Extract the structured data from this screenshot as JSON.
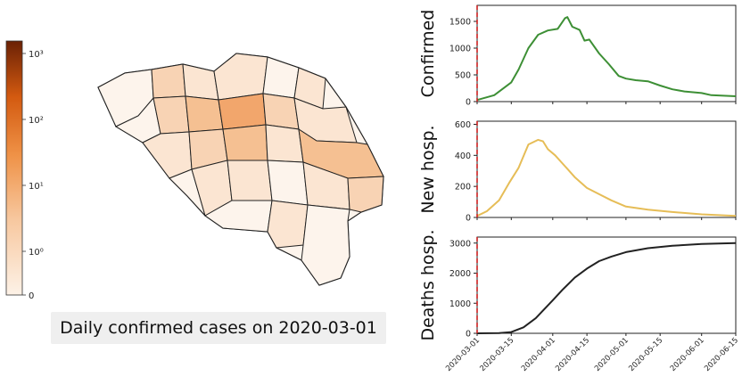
{
  "colorbar": {
    "ticks": [
      "10³",
      "10²",
      "10¹",
      "10⁰",
      "0"
    ],
    "colors": [
      "#f6eadc",
      "#f3c49a",
      "#e9823d",
      "#c24a0c",
      "#6a2105"
    ]
  },
  "map": {
    "caption": "Daily confirmed cases on 2020-03-01",
    "palette": [
      "#fdf4ec",
      "#fbe5d2",
      "#f8d3b4",
      "#f5c092",
      "#f2a66c"
    ]
  },
  "chart_data": [
    {
      "type": "line",
      "ylabel": "Confirmed",
      "color": "#3d8f35",
      "ylim": [
        0,
        1800
      ],
      "yticks": [
        0,
        500,
        1000,
        1500
      ],
      "x": [
        "2020-03-01",
        "2020-03-08",
        "2020-03-15",
        "2020-03-18",
        "2020-03-22",
        "2020-03-26",
        "2020-03-30",
        "2020-04-03",
        "2020-04-06",
        "2020-04-07",
        "2020-04-09",
        "2020-04-12",
        "2020-04-14",
        "2020-04-16",
        "2020-04-20",
        "2020-04-24",
        "2020-04-28",
        "2020-05-01",
        "2020-05-05",
        "2020-05-10",
        "2020-05-15",
        "2020-05-20",
        "2020-05-25",
        "2020-06-01",
        "2020-06-05",
        "2020-06-10",
        "2020-06-15"
      ],
      "y": [
        30,
        120,
        360,
        600,
        1000,
        1250,
        1330,
        1360,
        1560,
        1580,
        1400,
        1340,
        1140,
        1160,
        900,
        700,
        480,
        430,
        400,
        380,
        300,
        230,
        190,
        160,
        120,
        110,
        100
      ],
      "marker_date": "2020-03-01"
    },
    {
      "type": "line",
      "ylabel": "New hosp.",
      "color": "#e6bd57",
      "ylim": [
        0,
        620
      ],
      "yticks": [
        0,
        200,
        400,
        600
      ],
      "x": [
        "2020-03-01",
        "2020-03-05",
        "2020-03-10",
        "2020-03-14",
        "2020-03-18",
        "2020-03-22",
        "2020-03-26",
        "2020-03-28",
        "2020-03-30",
        "2020-04-02",
        "2020-04-06",
        "2020-04-10",
        "2020-04-15",
        "2020-04-20",
        "2020-04-25",
        "2020-05-01",
        "2020-05-10",
        "2020-05-20",
        "2020-06-01",
        "2020-06-15"
      ],
      "y": [
        10,
        40,
        110,
        220,
        320,
        470,
        500,
        490,
        440,
        400,
        330,
        260,
        190,
        150,
        110,
        70,
        50,
        35,
        20,
        10
      ],
      "marker_date": "2020-03-01"
    },
    {
      "type": "line",
      "ylabel": "Deaths hosp.",
      "color": "#222222",
      "ylim": [
        0,
        3200
      ],
      "yticks": [
        0,
        1000,
        2000,
        3000
      ],
      "x": [
        "2020-03-01",
        "2020-03-10",
        "2020-03-15",
        "2020-03-20",
        "2020-03-25",
        "2020-04-01",
        "2020-04-05",
        "2020-04-10",
        "2020-04-15",
        "2020-04-20",
        "2020-04-25",
        "2020-05-01",
        "2020-05-10",
        "2020-05-20",
        "2020-06-01",
        "2020-06-15"
      ],
      "y": [
        0,
        5,
        40,
        200,
        500,
        1100,
        1450,
        1850,
        2150,
        2400,
        2550,
        2700,
        2830,
        2910,
        2970,
        3000
      ],
      "marker_date": "2020-03-01"
    }
  ],
  "x_axis": {
    "ticks": [
      "2020-03-01",
      "2020-03-15",
      "2020-04-01",
      "2020-04-15",
      "2020-05-01",
      "2020-05-15",
      "2020-06-01",
      "2020-06-15"
    ],
    "range": [
      "2020-03-01",
      "2020-06-15"
    ]
  }
}
